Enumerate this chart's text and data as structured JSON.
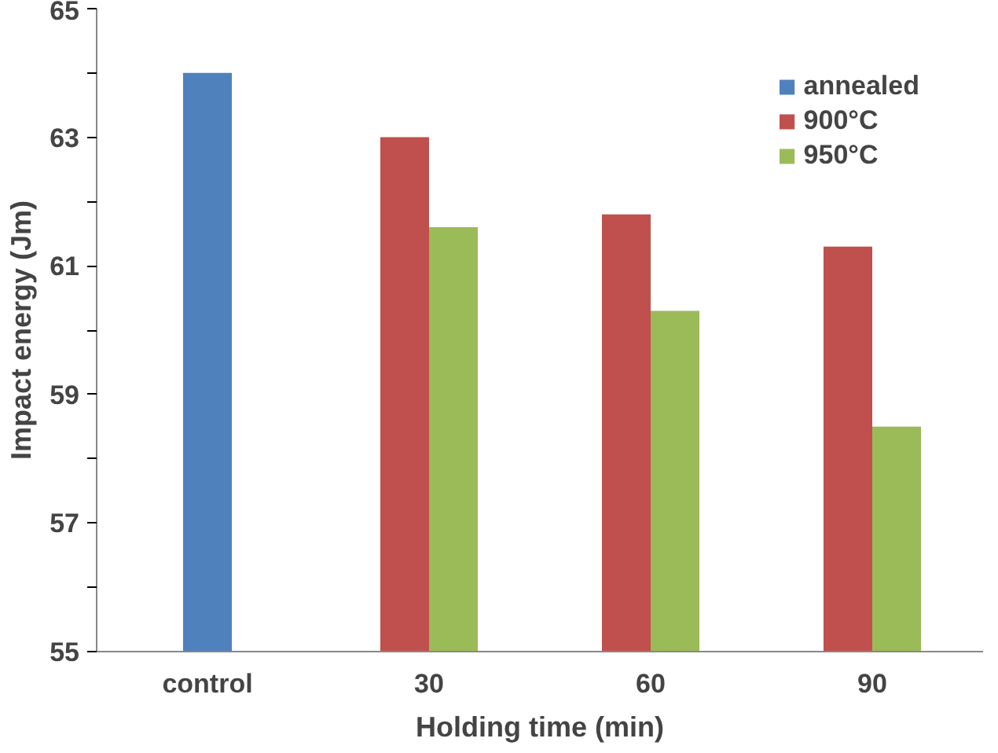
{
  "chart_data": {
    "type": "bar",
    "xlabel": "Holding time (min)",
    "ylabel": "Impact energy (Jm)",
    "categories": [
      "control",
      "30",
      "60",
      "90"
    ],
    "series": [
      {
        "name": "annealed",
        "color": "#4f81bd",
        "values": [
          64.0,
          null,
          null,
          null
        ]
      },
      {
        "name": "900°C",
        "color": "#c0504d",
        "values": [
          null,
          63.0,
          61.8,
          61.3
        ]
      },
      {
        "name": "950°C",
        "color": "#9bbb59",
        "values": [
          null,
          61.6,
          60.3,
          58.5
        ]
      }
    ],
    "ylim": [
      55,
      65
    ],
    "yticks": [
      55,
      {
        "value": 56,
        "label": null
      },
      57,
      {
        "value": 58,
        "label": null
      },
      59,
      {
        "value": 60,
        "label": null
      },
      61,
      {
        "value": 62,
        "label": null
      },
      63,
      {
        "value": 64,
        "label": null
      },
      65
    ],
    "grid": false,
    "legend": "top right"
  }
}
